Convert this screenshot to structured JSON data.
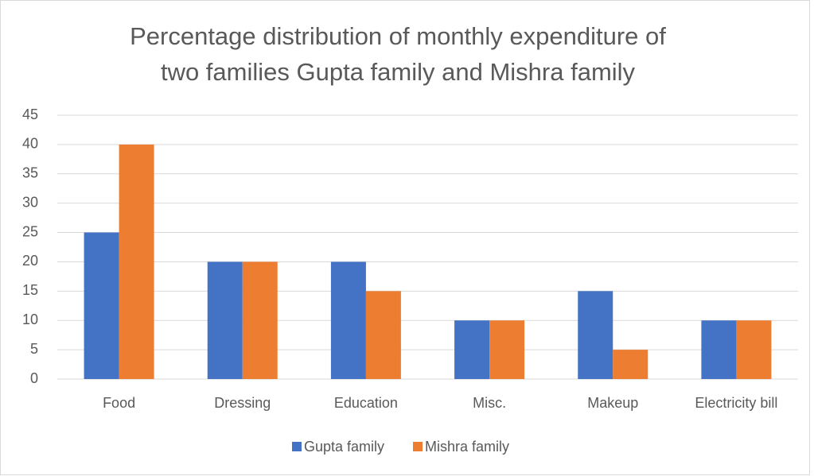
{
  "chart_data": {
    "type": "bar",
    "title": [
      "Percentage distribution of monthly expenditure of",
      "two families Gupta family and Mishra family"
    ],
    "categories": [
      "Food",
      "Dressing",
      "Education",
      "Misc.",
      "Makeup",
      "Electricity bill"
    ],
    "series": [
      {
        "name": "Gupta family",
        "color": "#4472c4",
        "values": [
          25,
          20,
          20,
          10,
          15,
          10
        ]
      },
      {
        "name": "Mishra family",
        "color": "#ed7d31",
        "values": [
          40,
          20,
          15,
          10,
          5,
          10
        ]
      }
    ],
    "ylim": [
      0,
      45
    ],
    "yticks": [
      0,
      5,
      10,
      15,
      20,
      25,
      30,
      35,
      40,
      45
    ],
    "grid": true,
    "legend": "bottom"
  }
}
